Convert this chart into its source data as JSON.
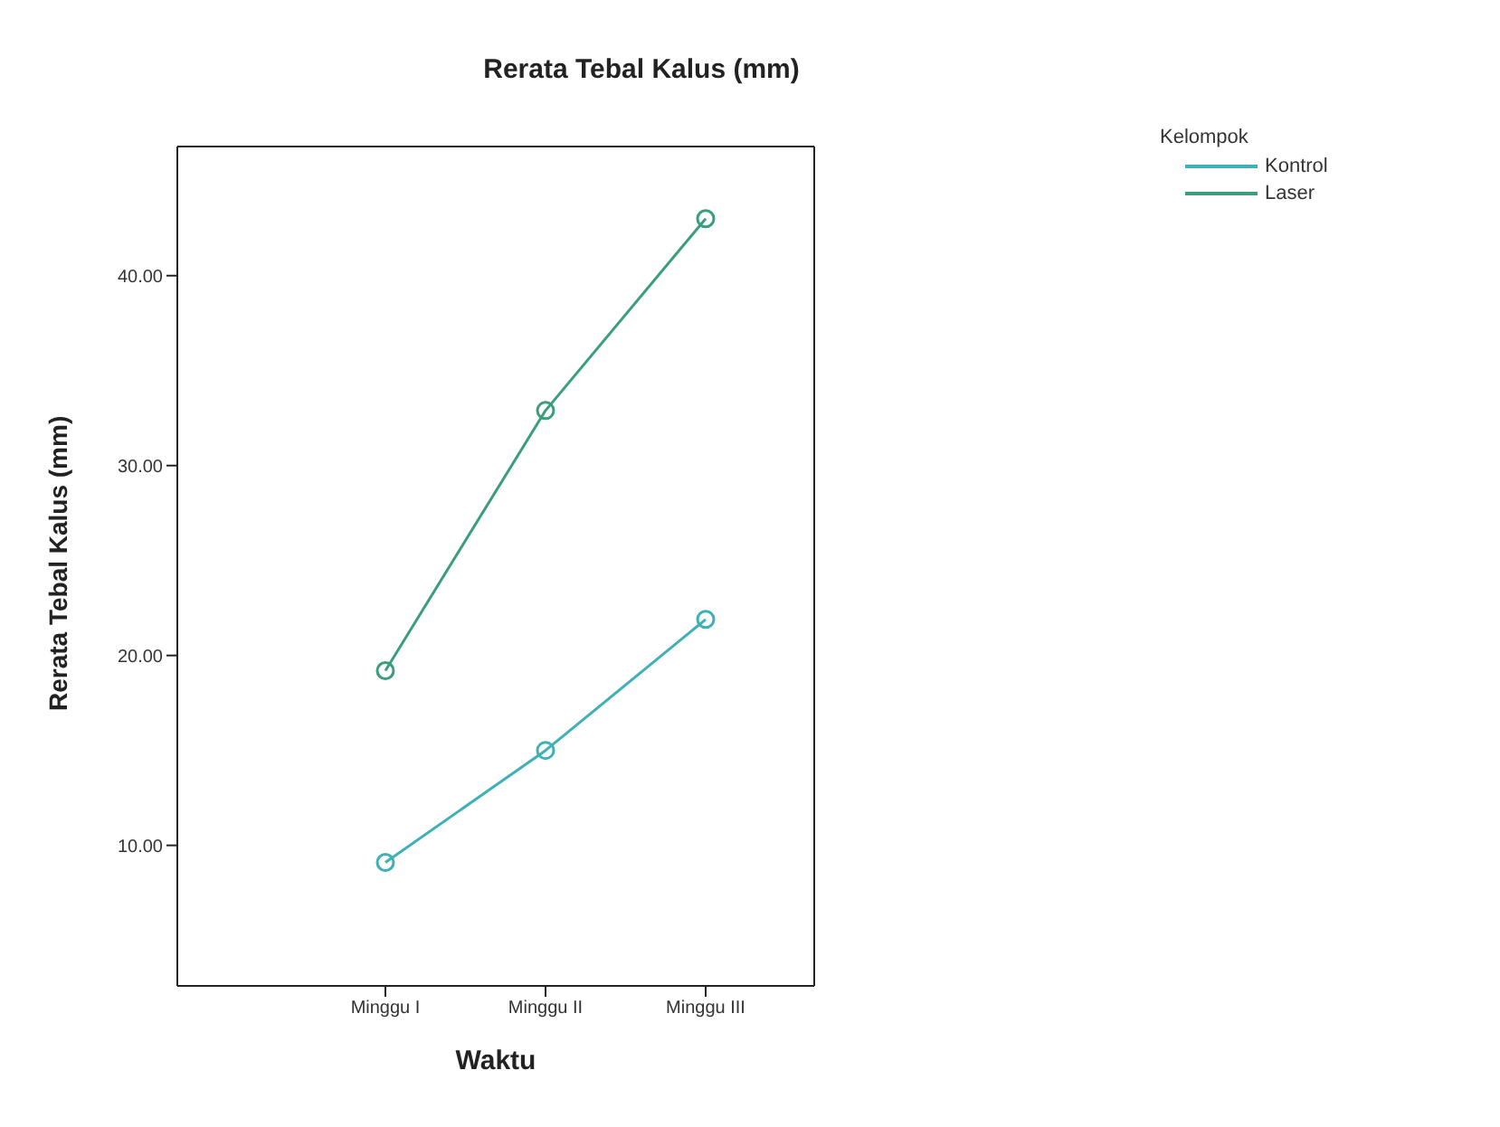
{
  "chart_data": {
    "type": "line",
    "title": "Rerata Tebal Kalus (mm)",
    "xlabel": "Waktu",
    "ylabel": "Rerata Tebal Kalus (mm)",
    "legend_title": "Kelompok",
    "categories": [
      "Minggu I",
      "Minggu II",
      "Minggu III"
    ],
    "series": [
      {
        "name": "Kontrol",
        "color": "#3fb0b8",
        "values": [
          9.1,
          15.0,
          21.9
        ]
      },
      {
        "name": "Laser",
        "color": "#3a9e7c",
        "values": [
          19.2,
          32.9,
          43.0
        ]
      }
    ],
    "ylim": [
      2.6,
      46.8
    ],
    "yticks": [
      {
        "value": 10,
        "label": "10.00"
      },
      {
        "value": 20,
        "label": "20.00"
      },
      {
        "value": 30,
        "label": "30.00"
      },
      {
        "value": 40,
        "label": "40.00"
      }
    ],
    "grid": false,
    "legend": "top right",
    "marker": "circle",
    "line_style": "solid"
  }
}
